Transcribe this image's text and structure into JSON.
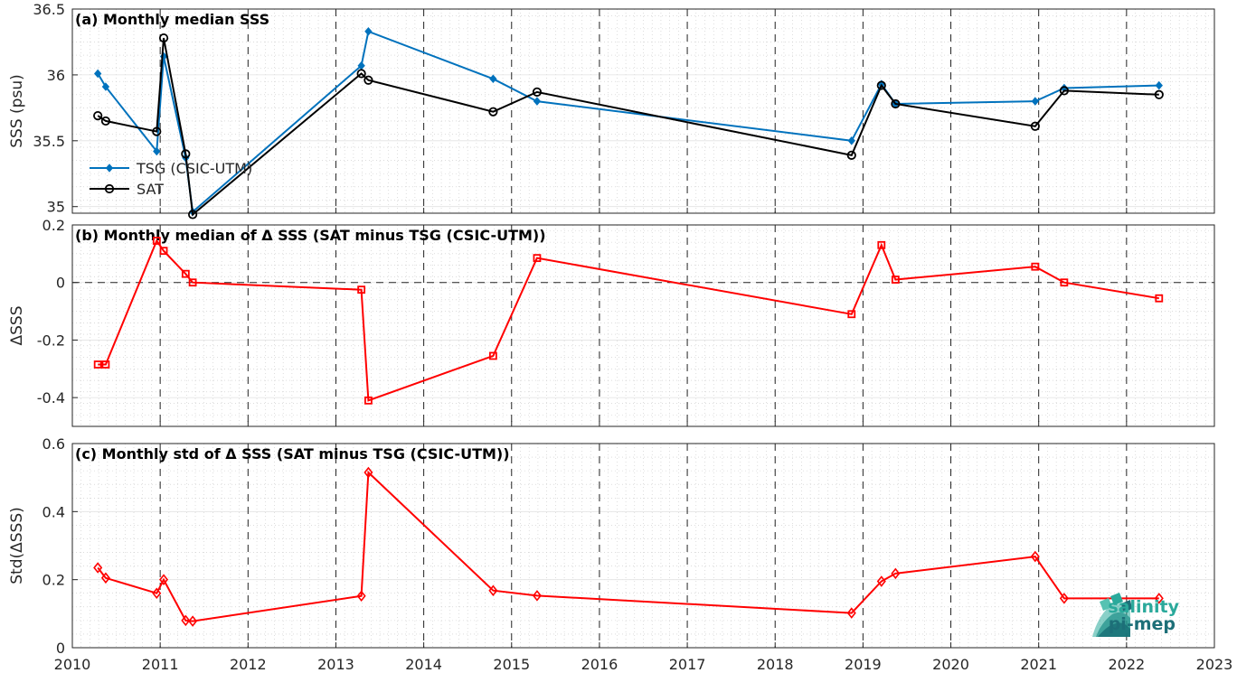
{
  "colors": {
    "tsg": "#0072BD",
    "sat": "#000000",
    "delta": "#FF0000",
    "logo_light": "#2aa99b",
    "logo_dark": "#1d6f78"
  },
  "logo": {
    "line1": "salinity",
    "line2": "pi-mep"
  },
  "chart_data": [
    {
      "type": "line",
      "title": "(a) Monthly median SSS",
      "ylabel": "SSS (psu)",
      "xlim": [
        2010,
        2023
      ],
      "ylim": [
        34.95,
        36.5
      ],
      "yticks": [
        35,
        35.5,
        36,
        36.5
      ],
      "ytick_labels": [
        "35",
        "35.5",
        "36",
        "36.5"
      ],
      "grid": true,
      "legend": "lower-left",
      "series": [
        {
          "name": "TSG (CSIC-UTM)",
          "marker": "diamond",
          "color": "#0072BD",
          "x": [
            2010.29,
            2010.38,
            2010.96,
            2011.04,
            2011.29,
            2011.37,
            2013.29,
            2013.37,
            2014.79,
            2015.29,
            2018.87,
            2019.21,
            2019.37,
            2020.96,
            2021.29,
            2022.37
          ],
          "y": [
            36.01,
            35.91,
            35.42,
            36.14,
            35.37,
            34.96,
            36.07,
            36.33,
            35.97,
            35.8,
            35.5,
            35.93,
            35.78,
            35.8,
            35.9,
            35.92
          ]
        },
        {
          "name": "SAT",
          "marker": "circle",
          "color": "#000000",
          "x": [
            2010.29,
            2010.38,
            2010.96,
            2011.04,
            2011.29,
            2011.37,
            2013.29,
            2013.37,
            2014.79,
            2015.29,
            2018.87,
            2019.21,
            2019.37,
            2020.96,
            2021.29,
            2022.37
          ],
          "y": [
            35.69,
            35.65,
            35.57,
            36.28,
            35.4,
            34.94,
            36.01,
            35.96,
            35.72,
            35.87,
            35.39,
            35.92,
            35.78,
            35.61,
            35.88,
            35.85
          ]
        }
      ]
    },
    {
      "type": "line",
      "title": "(b) Monthly median of Δ SSS (SAT minus TSG (CSIC-UTM))",
      "ylabel": "ΔSSS",
      "xlim": [
        2010,
        2023
      ],
      "ylim": [
        -0.5,
        0.2
      ],
      "yticks": [
        -0.4,
        -0.2,
        0,
        0.2
      ],
      "ytick_labels": [
        "-0.4",
        "-0.2",
        "0",
        "0.2"
      ],
      "zero_line": true,
      "grid": true,
      "series": [
        {
          "marker": "square",
          "color": "#FF0000",
          "x": [
            2010.29,
            2010.38,
            2010.96,
            2011.04,
            2011.29,
            2011.37,
            2013.29,
            2013.37,
            2014.79,
            2015.29,
            2018.87,
            2019.21,
            2019.37,
            2020.96,
            2021.29,
            2022.37
          ],
          "y": [
            -0.285,
            -0.285,
            0.145,
            0.11,
            0.03,
            0.0,
            -0.025,
            -0.41,
            -0.255,
            0.085,
            -0.11,
            0.13,
            0.01,
            0.055,
            0.0,
            -0.055
          ]
        }
      ]
    },
    {
      "type": "line",
      "title": "(c) Monthly std of Δ SSS (SAT minus TSG (CSIC-UTM))",
      "ylabel": "Std(ΔSSS)",
      "xlim": [
        2010,
        2023
      ],
      "ylim": [
        0,
        0.6
      ],
      "yticks": [
        0,
        0.2,
        0.4,
        0.6
      ],
      "ytick_labels": [
        "0",
        "0.2",
        "0.4",
        "0.6"
      ],
      "xticks": [
        2010,
        2011,
        2012,
        2013,
        2014,
        2015,
        2016,
        2017,
        2018,
        2019,
        2020,
        2021,
        2022,
        2023
      ],
      "xtick_labels": [
        "2010",
        "2011",
        "2012",
        "2013",
        "2014",
        "2015",
        "2016",
        "2017",
        "2018",
        "2019",
        "2020",
        "2021",
        "2022",
        "2023"
      ],
      "grid": true,
      "series": [
        {
          "marker": "diamond-open",
          "color": "#FF0000",
          "x": [
            2010.29,
            2010.38,
            2010.96,
            2011.04,
            2011.29,
            2011.37,
            2013.29,
            2013.37,
            2014.79,
            2015.29,
            2018.87,
            2019.21,
            2019.37,
            2020.96,
            2021.29,
            2022.37
          ],
          "y": [
            0.235,
            0.205,
            0.16,
            0.2,
            0.08,
            0.078,
            0.152,
            0.515,
            0.168,
            0.153,
            0.102,
            0.195,
            0.218,
            0.268,
            0.145,
            0.145
          ]
        }
      ]
    }
  ]
}
